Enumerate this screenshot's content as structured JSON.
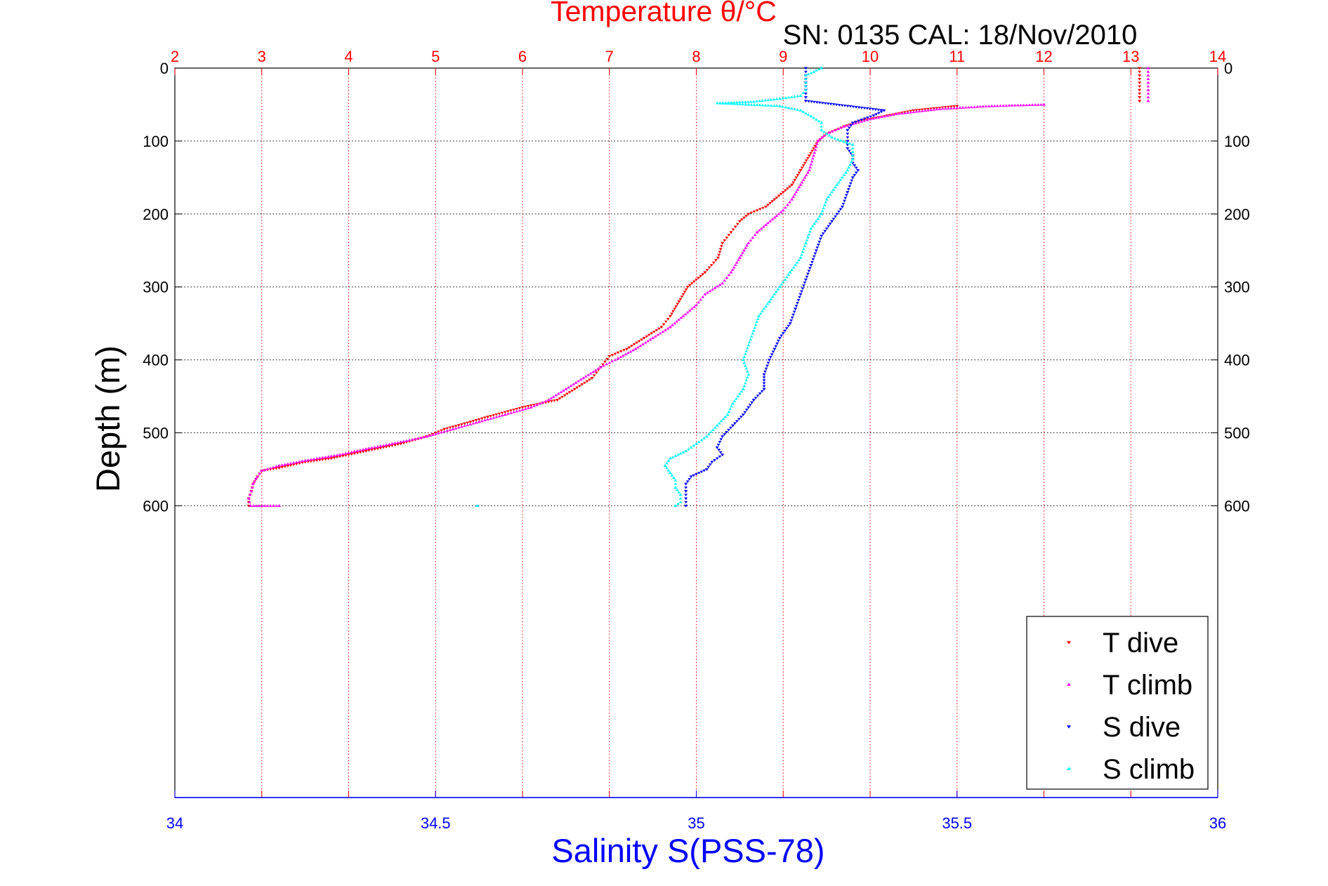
{
  "chart_data": {
    "type": "scatter",
    "title": "Temperature θ/°C",
    "subtitle": "SN: 0135  CAL: 18/Nov/2010",
    "ylabel": "Depth (m)",
    "xlabel_bottom": "Salinity S(PSS-78)",
    "top_axis": {
      "label": "Temperature θ/°C",
      "ticks": [
        2,
        3,
        4,
        5,
        6,
        7,
        8,
        9,
        10,
        11,
        12,
        13,
        14
      ],
      "range": [
        2,
        14
      ],
      "color": "#ff0000"
    },
    "bottom_axis": {
      "label": "Salinity S(PSS-78)",
      "ticks": [
        "34",
        "34.5",
        "35",
        "35.5",
        "36"
      ],
      "range": [
        34,
        36
      ],
      "color": "#0000ff"
    },
    "y_axis": {
      "ticks": [
        0,
        100,
        200,
        300,
        400,
        500,
        600
      ],
      "range": [
        0,
        1000
      ],
      "reversed": true
    },
    "grid": true,
    "legend_position": "bottom-right",
    "legend": [
      "T dive",
      "T climb",
      "S dive",
      "S climb"
    ],
    "series": [
      {
        "name": "T dive",
        "axis": "temperature",
        "color": "#ff0000",
        "marker": "triangle-down",
        "points": [
          [
            13.1,
            0
          ],
          [
            13.1,
            10
          ],
          [
            13.1,
            20
          ],
          [
            13.1,
            30
          ],
          [
            13.1,
            40
          ],
          [
            13.1,
            45
          ],
          [
            11.0,
            52
          ],
          [
            10.5,
            58
          ],
          [
            10.2,
            65
          ],
          [
            9.9,
            72
          ],
          [
            9.7,
            80
          ],
          [
            9.5,
            90
          ],
          [
            9.4,
            100
          ],
          [
            9.3,
            120
          ],
          [
            9.2,
            140
          ],
          [
            9.1,
            160
          ],
          [
            9.0,
            170
          ],
          [
            8.9,
            180
          ],
          [
            8.8,
            190
          ],
          [
            8.6,
            200
          ],
          [
            8.5,
            210
          ],
          [
            8.4,
            225
          ],
          [
            8.3,
            240
          ],
          [
            8.25,
            260
          ],
          [
            8.1,
            280
          ],
          [
            7.9,
            300
          ],
          [
            7.8,
            320
          ],
          [
            7.7,
            340
          ],
          [
            7.6,
            355
          ],
          [
            7.4,
            370
          ],
          [
            7.2,
            385
          ],
          [
            7.0,
            395
          ],
          [
            6.9,
            410
          ],
          [
            6.8,
            425
          ],
          [
            6.6,
            440
          ],
          [
            6.4,
            455
          ],
          [
            6.0,
            465
          ],
          [
            5.6,
            478
          ],
          [
            5.4,
            485
          ],
          [
            5.1,
            495
          ],
          [
            4.9,
            505
          ],
          [
            4.6,
            515
          ],
          [
            4.2,
            525
          ],
          [
            3.8,
            535
          ],
          [
            3.5,
            540
          ],
          [
            3.2,
            548
          ],
          [
            3.0,
            552
          ],
          [
            2.95,
            560
          ],
          [
            2.9,
            570
          ],
          [
            2.88,
            580
          ],
          [
            2.85,
            590
          ],
          [
            2.85,
            600
          ]
        ]
      },
      {
        "name": "T climb",
        "axis": "temperature",
        "color": "#ff00ff",
        "marker": "triangle-up",
        "points": [
          [
            13.2,
            0
          ],
          [
            13.2,
            10
          ],
          [
            13.2,
            20
          ],
          [
            13.2,
            30
          ],
          [
            13.2,
            45
          ],
          [
            12.0,
            50
          ],
          [
            11.4,
            52
          ],
          [
            10.8,
            56
          ],
          [
            10.3,
            63
          ],
          [
            10.0,
            70
          ],
          [
            9.7,
            80
          ],
          [
            9.5,
            90
          ],
          [
            9.4,
            100
          ],
          [
            9.35,
            120
          ],
          [
            9.3,
            140
          ],
          [
            9.2,
            160
          ],
          [
            9.1,
            180
          ],
          [
            9.0,
            195
          ],
          [
            8.9,
            205
          ],
          [
            8.8,
            215
          ],
          [
            8.7,
            225
          ],
          [
            8.6,
            240
          ],
          [
            8.5,
            260
          ],
          [
            8.4,
            280
          ],
          [
            8.3,
            295
          ],
          [
            8.1,
            310
          ],
          [
            8.0,
            325
          ],
          [
            7.85,
            340
          ],
          [
            7.7,
            355
          ],
          [
            7.5,
            370
          ],
          [
            7.3,
            385
          ],
          [
            7.1,
            398
          ],
          [
            6.9,
            410
          ],
          [
            6.7,
            425
          ],
          [
            6.5,
            440
          ],
          [
            6.3,
            455
          ],
          [
            6.1,
            465
          ],
          [
            5.8,
            475
          ],
          [
            5.5,
            485
          ],
          [
            5.2,
            495
          ],
          [
            4.9,
            505
          ],
          [
            4.5,
            515
          ],
          [
            4.2,
            522
          ],
          [
            3.9,
            530
          ],
          [
            3.5,
            538
          ],
          [
            3.2,
            545
          ],
          [
            3.0,
            552
          ],
          [
            2.95,
            560
          ],
          [
            2.9,
            570
          ],
          [
            2.88,
            580
          ],
          [
            2.85,
            590
          ],
          [
            2.87,
            600
          ],
          [
            3.2,
            600
          ]
        ]
      },
      {
        "name": "S dive",
        "axis": "salinity",
        "color": "#0000ff",
        "marker": "triangle-down",
        "points": [
          [
            35.21,
            0
          ],
          [
            35.21,
            10
          ],
          [
            35.21,
            20
          ],
          [
            35.21,
            30
          ],
          [
            35.21,
            40
          ],
          [
            35.21,
            45
          ],
          [
            35.36,
            58
          ],
          [
            35.34,
            65
          ],
          [
            35.3,
            75
          ],
          [
            35.29,
            85
          ],
          [
            35.29,
            100
          ],
          [
            35.29,
            110
          ],
          [
            35.3,
            120
          ],
          [
            35.3,
            130
          ],
          [
            35.31,
            140
          ],
          [
            35.3,
            150
          ],
          [
            35.29,
            170
          ],
          [
            35.28,
            190
          ],
          [
            35.26,
            210
          ],
          [
            35.24,
            230
          ],
          [
            35.23,
            250
          ],
          [
            35.22,
            270
          ],
          [
            35.21,
            290
          ],
          [
            35.2,
            310
          ],
          [
            35.19,
            330
          ],
          [
            35.18,
            350
          ],
          [
            35.16,
            370
          ],
          [
            35.15,
            385
          ],
          [
            35.14,
            400
          ],
          [
            35.13,
            420
          ],
          [
            35.13,
            440
          ],
          [
            35.11,
            455
          ],
          [
            35.1,
            465
          ],
          [
            35.09,
            475
          ],
          [
            35.07,
            490
          ],
          [
            35.05,
            505
          ],
          [
            35.04,
            520
          ],
          [
            35.05,
            530
          ],
          [
            35.03,
            540
          ],
          [
            35.02,
            550
          ],
          [
            34.99,
            560
          ],
          [
            34.98,
            570
          ],
          [
            34.98,
            580
          ],
          [
            34.98,
            590
          ],
          [
            34.98,
            600
          ]
        ]
      },
      {
        "name": "S climb",
        "axis": "salinity",
        "color": "#00ffff",
        "marker": "triangle-up",
        "points": [
          [
            35.24,
            0
          ],
          [
            35.21,
            10
          ],
          [
            35.21,
            20
          ],
          [
            35.21,
            30
          ],
          [
            35.2,
            38
          ],
          [
            35.16,
            42
          ],
          [
            35.11,
            46
          ],
          [
            35.04,
            48
          ],
          [
            35.16,
            52
          ],
          [
            35.2,
            58
          ],
          [
            35.22,
            66
          ],
          [
            35.24,
            75
          ],
          [
            35.24,
            85
          ],
          [
            35.26,
            95
          ],
          [
            35.3,
            105
          ],
          [
            35.3,
            115
          ],
          [
            35.3,
            125
          ],
          [
            35.29,
            140
          ],
          [
            35.27,
            160
          ],
          [
            35.25,
            180
          ],
          [
            35.24,
            200
          ],
          [
            35.22,
            220
          ],
          [
            35.21,
            240
          ],
          [
            35.2,
            260
          ],
          [
            35.18,
            280
          ],
          [
            35.16,
            300
          ],
          [
            35.14,
            320
          ],
          [
            35.12,
            340
          ],
          [
            35.11,
            360
          ],
          [
            35.1,
            380
          ],
          [
            35.09,
            400
          ],
          [
            35.1,
            420
          ],
          [
            35.09,
            440
          ],
          [
            35.07,
            460
          ],
          [
            35.06,
            475
          ],
          [
            35.04,
            490
          ],
          [
            35.02,
            505
          ],
          [
            35.0,
            515
          ],
          [
            34.98,
            525
          ],
          [
            34.95,
            535
          ],
          [
            34.94,
            545
          ],
          [
            34.95,
            555
          ],
          [
            34.96,
            565
          ],
          [
            34.96,
            575
          ],
          [
            34.97,
            585
          ],
          [
            34.97,
            595
          ],
          [
            34.96,
            600
          ],
          [
            34.58,
            600
          ]
        ]
      }
    ]
  }
}
